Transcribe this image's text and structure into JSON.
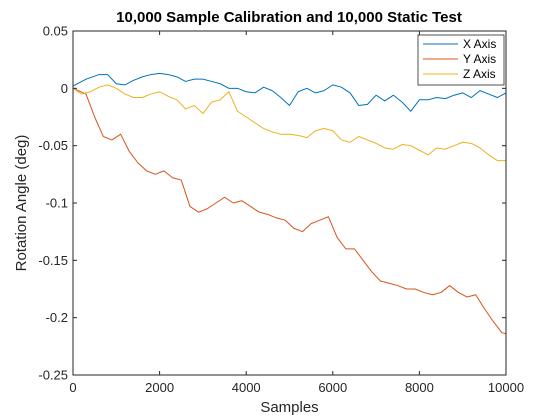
{
  "chart_data": {
    "type": "line",
    "title": "10,000 Sample Calibration and 10,000 Static Test",
    "xlabel": "Samples",
    "ylabel": "Rotation Angle (deg)",
    "xlim": [
      0,
      10000
    ],
    "ylim": [
      -0.25,
      0.05
    ],
    "xticks": [
      0,
      2000,
      4000,
      6000,
      8000,
      10000
    ],
    "xtick_labels": [
      "0",
      "2000",
      "4000",
      "6000",
      "8000",
      "10000"
    ],
    "yticks": [
      0.05,
      0,
      -0.05,
      -0.1,
      -0.15,
      -0.2,
      -0.25
    ],
    "ytick_labels": [
      "0.05",
      "0",
      "-0.05",
      "-0.1",
      "-0.15",
      "-0.2",
      "-0.25"
    ],
    "grid": false,
    "legend_position": "top-right",
    "series": [
      {
        "name": "X Axis",
        "color": "#0072BD",
        "x": [
          0,
          300,
          600,
          800,
          1000,
          1200,
          1400,
          1600,
          1800,
          2000,
          2200,
          2400,
          2600,
          2800,
          3000,
          3200,
          3400,
          3600,
          3800,
          4000,
          4200,
          4400,
          4600,
          4800,
          5000,
          5200,
          5400,
          5600,
          5800,
          6000,
          6200,
          6400,
          6600,
          6800,
          7000,
          7200,
          7400,
          7600,
          7800,
          8000,
          8200,
          8400,
          8600,
          8800,
          9000,
          9200,
          9400,
          9600,
          9800,
          10000
        ],
        "y": [
          0.002,
          0.008,
          0.012,
          0.012,
          0.004,
          0.003,
          0.007,
          0.01,
          0.012,
          0.013,
          0.012,
          0.01,
          0.006,
          0.008,
          0.008,
          0.006,
          0.004,
          0.0,
          0.0,
          -0.003,
          -0.004,
          0.001,
          -0.002,
          -0.008,
          -0.015,
          -0.003,
          0.0,
          -0.004,
          -0.002,
          0.003,
          0.001,
          -0.004,
          -0.015,
          -0.014,
          -0.006,
          -0.011,
          -0.006,
          -0.012,
          -0.02,
          -0.01,
          -0.01,
          -0.008,
          -0.009,
          -0.006,
          -0.004,
          -0.008,
          -0.002,
          -0.005,
          -0.008,
          -0.004
        ]
      },
      {
        "name": "Y Axis",
        "color": "#D95319",
        "x": [
          0,
          300,
          500,
          700,
          900,
          1100,
          1300,
          1500,
          1700,
          1900,
          2100,
          2300,
          2500,
          2700,
          2900,
          3100,
          3300,
          3500,
          3700,
          3900,
          4100,
          4300,
          4500,
          4700,
          4900,
          5100,
          5300,
          5500,
          5700,
          5900,
          6100,
          6300,
          6500,
          6700,
          6900,
          7100,
          7300,
          7500,
          7700,
          7900,
          8100,
          8300,
          8500,
          8700,
          8900,
          9100,
          9300,
          9500,
          9700,
          9900,
          10000
        ],
        "y": [
          0.0,
          -0.005,
          -0.025,
          -0.042,
          -0.045,
          -0.04,
          -0.055,
          -0.065,
          -0.072,
          -0.075,
          -0.072,
          -0.078,
          -0.08,
          -0.103,
          -0.108,
          -0.105,
          -0.1,
          -0.095,
          -0.1,
          -0.098,
          -0.103,
          -0.108,
          -0.11,
          -0.113,
          -0.115,
          -0.122,
          -0.125,
          -0.118,
          -0.115,
          -0.112,
          -0.13,
          -0.14,
          -0.14,
          -0.15,
          -0.16,
          -0.168,
          -0.17,
          -0.172,
          -0.175,
          -0.175,
          -0.178,
          -0.18,
          -0.178,
          -0.172,
          -0.178,
          -0.182,
          -0.18,
          -0.192,
          -0.203,
          -0.213,
          -0.214
        ]
      },
      {
        "name": "Z Axis",
        "color": "#EDB120",
        "x": [
          0,
          200,
          400,
          600,
          800,
          1000,
          1200,
          1400,
          1600,
          1800,
          2000,
          2200,
          2400,
          2600,
          2800,
          3000,
          3200,
          3400,
          3600,
          3800,
          4000,
          4200,
          4400,
          4600,
          4800,
          5000,
          5200,
          5400,
          5600,
          5800,
          6000,
          6200,
          6400,
          6600,
          6800,
          7000,
          7200,
          7400,
          7600,
          7800,
          8000,
          8200,
          8400,
          8600,
          8800,
          9000,
          9200,
          9400,
          9600,
          9800,
          10000
        ],
        "y": [
          0.0,
          -0.005,
          -0.003,
          0.001,
          0.003,
          0.0,
          -0.005,
          -0.008,
          -0.008,
          -0.005,
          -0.003,
          -0.007,
          -0.01,
          -0.018,
          -0.015,
          -0.022,
          -0.012,
          -0.01,
          -0.003,
          -0.02,
          -0.025,
          -0.03,
          -0.035,
          -0.038,
          -0.04,
          -0.04,
          -0.041,
          -0.043,
          -0.037,
          -0.035,
          -0.037,
          -0.045,
          -0.047,
          -0.042,
          -0.045,
          -0.048,
          -0.052,
          -0.053,
          -0.049,
          -0.05,
          -0.054,
          -0.058,
          -0.052,
          -0.053,
          -0.05,
          -0.047,
          -0.048,
          -0.052,
          -0.058,
          -0.063,
          -0.063
        ]
      }
    ]
  }
}
